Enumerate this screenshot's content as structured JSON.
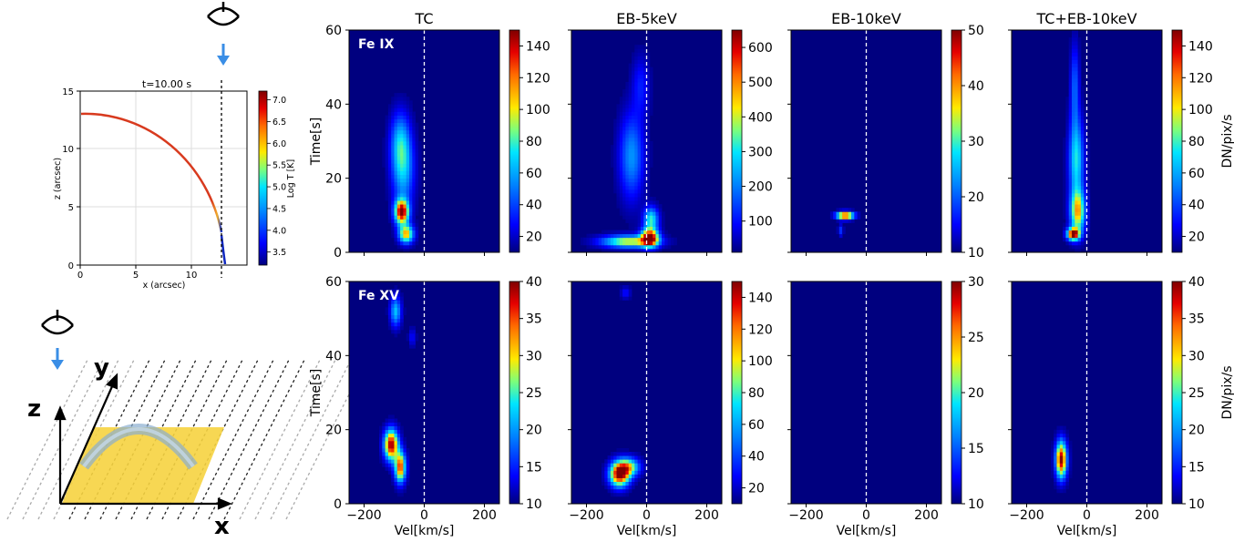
{
  "figure": {
    "colormap": [
      "#00007f",
      "#0000ff",
      "#0080ff",
      "#00e5ff",
      "#7dff7a",
      "#ffea00",
      "#ff6a00",
      "#e60000",
      "#7f0000"
    ],
    "column_titles": [
      "TC",
      "EB-5keV",
      "EB-10keV",
      "TC+EB-10keV"
    ],
    "row_labels": [
      "Fe IX",
      "Fe XV"
    ],
    "xlabel": "Vel[km/s]",
    "ylabel": "Time[s]",
    "cbar_label": "DN/pix/s"
  },
  "loop_plot": {
    "title": "t=10.00 s",
    "xlabel": "x (arcsec)",
    "ylabel": "z (arcsec)",
    "cbar_label": "Log T [K]",
    "xticks": [
      "0",
      "5",
      "10"
    ],
    "yticks": [
      "0",
      "5",
      "10",
      "15"
    ],
    "cbar_ticks": [
      "7.0",
      "6.5",
      "6.0",
      "5.5",
      "5.0",
      "4.5",
      "4.0",
      "3.5"
    ],
    "cbar_range": [
      3.2,
      7.2
    ],
    "xlim": [
      0,
      15
    ],
    "ylim": [
      0,
      15
    ],
    "observer_x": 12.9
  },
  "schematic": {
    "axis_x": "x",
    "axis_y": "y",
    "axis_z": "z"
  },
  "chart_data": [
    {
      "type": "heatmap",
      "title": "TC",
      "row_label": "Fe IX",
      "xlim": [
        -250,
        250
      ],
      "ylim": [
        0,
        60
      ],
      "xticks": [
        -200,
        0,
        200
      ],
      "yticks": [
        0,
        20,
        40,
        60
      ],
      "vmin": 10,
      "vmax": 150,
      "cbar_ticks": [
        20,
        40,
        60,
        80,
        100,
        120,
        140
      ],
      "blobs": [
        {
          "v": -80,
          "t": 30,
          "dv": 40,
          "dt": 10,
          "a": 55
        },
        {
          "v": -70,
          "t": 22,
          "dv": 45,
          "dt": 12,
          "a": 60
        },
        {
          "v": -75,
          "t": 11,
          "dv": 28,
          "dt": 4,
          "a": 150
        },
        {
          "v": -60,
          "t": 5,
          "dv": 30,
          "dt": 3,
          "a": 110
        }
      ]
    },
    {
      "type": "heatmap",
      "title": "EB-5keV",
      "xlim": [
        -250,
        250
      ],
      "ylim": [
        0,
        60
      ],
      "xticks": [
        -200,
        0,
        200
      ],
      "yticks": [
        0,
        20,
        40,
        60
      ],
      "vmin": 10,
      "vmax": 650,
      "cbar_ticks": [
        100,
        200,
        300,
        400,
        500,
        600
      ],
      "blobs": [
        {
          "v": -50,
          "t": 26,
          "dv": 50,
          "dt": 14,
          "a": 220
        },
        {
          "v": -20,
          "t": 45,
          "dv": 35,
          "dt": 10,
          "a": 110
        },
        {
          "v": -60,
          "t": 3,
          "dv": 110,
          "dt": 2,
          "a": 420
        },
        {
          "v": 10,
          "t": 4,
          "dv": 35,
          "dt": 3,
          "a": 650
        },
        {
          "v": 15,
          "t": 9,
          "dv": 30,
          "dt": 4,
          "a": 320
        }
      ]
    },
    {
      "type": "heatmap",
      "title": "EB-10keV",
      "xlim": [
        -250,
        250
      ],
      "ylim": [
        0,
        60
      ],
      "xticks": [
        -200,
        0,
        200
      ],
      "yticks": [
        0,
        20,
        40,
        60
      ],
      "vmin": 10,
      "vmax": 50,
      "cbar_ticks": [
        10,
        20,
        30,
        40,
        50
      ],
      "blobs": [
        {
          "v": -70,
          "t": 10,
          "dv": 35,
          "dt": 1.2,
          "a": 50
        },
        {
          "v": -85,
          "t": 6,
          "dv": 10,
          "dt": 2,
          "a": 18
        }
      ]
    },
    {
      "type": "heatmap",
      "title": "TC+EB-10keV",
      "xlim": [
        -250,
        250
      ],
      "ylim": [
        0,
        60
      ],
      "xticks": [
        -200,
        0,
        200
      ],
      "yticks": [
        0,
        20,
        40,
        60
      ],
      "vmin": 10,
      "vmax": 150,
      "cbar_ticks": [
        20,
        40,
        60,
        80,
        100,
        120,
        140
      ],
      "cbar_label": "DN/pix/s",
      "blobs": [
        {
          "v": -40,
          "t": 45,
          "dv": 18,
          "dt": 14,
          "a": 45
        },
        {
          "v": -35,
          "t": 25,
          "dv": 30,
          "dt": 14,
          "a": 75
        },
        {
          "v": -30,
          "t": 11,
          "dv": 30,
          "dt": 7,
          "a": 105
        },
        {
          "v": -45,
          "t": 5,
          "dv": 25,
          "dt": 2,
          "a": 150
        }
      ]
    },
    {
      "type": "heatmap",
      "title": "",
      "row_label": "Fe XV",
      "xlim": [
        -250,
        250
      ],
      "ylim": [
        0,
        60
      ],
      "xticks": [
        -200,
        0,
        200
      ],
      "yticks": [
        0,
        20,
        40,
        60
      ],
      "vmin": 10,
      "vmax": 40,
      "cbar_ticks": [
        10,
        15,
        20,
        25,
        30,
        35,
        40
      ],
      "blobs": [
        {
          "v": -110,
          "t": 16,
          "dv": 28,
          "dt": 5,
          "a": 40
        },
        {
          "v": -80,
          "t": 10,
          "dv": 22,
          "dt": 5,
          "a": 36
        },
        {
          "v": -95,
          "t": 52,
          "dv": 22,
          "dt": 5,
          "a": 22
        },
        {
          "v": -40,
          "t": 45,
          "dv": 15,
          "dt": 3,
          "a": 14
        }
      ]
    },
    {
      "type": "heatmap",
      "title": "",
      "xlim": [
        -250,
        250
      ],
      "ylim": [
        0,
        60
      ],
      "xticks": [
        -200,
        0,
        200
      ],
      "yticks": [
        0,
        20,
        40,
        60
      ],
      "vmin": 10,
      "vmax": 150,
      "cbar_ticks": [
        20,
        40,
        60,
        80,
        100,
        120,
        140
      ],
      "blobs": [
        {
          "v": -90,
          "t": 8,
          "dv": 40,
          "dt": 4,
          "a": 150
        },
        {
          "v": -60,
          "t": 10,
          "dv": 45,
          "dt": 3,
          "a": 90
        },
        {
          "v": -70,
          "t": 57,
          "dv": 20,
          "dt": 2,
          "a": 30
        }
      ]
    },
    {
      "type": "heatmap",
      "title": "",
      "xlim": [
        -250,
        250
      ],
      "ylim": [
        0,
        60
      ],
      "xticks": [
        -200,
        0,
        200
      ],
      "yticks": [
        0,
        20,
        40,
        60
      ],
      "vmin": 10,
      "vmax": 30,
      "cbar_ticks": [
        10,
        15,
        20,
        25,
        30
      ],
      "blobs": []
    },
    {
      "type": "heatmap",
      "title": "",
      "xlim": [
        -250,
        250
      ],
      "ylim": [
        0,
        60
      ],
      "xticks": [
        -200,
        0,
        200
      ],
      "yticks": [
        0,
        20,
        40,
        60
      ],
      "vmin": 10,
      "vmax": 40,
      "cbar_ticks": [
        10,
        15,
        20,
        25,
        30,
        35,
        40
      ],
      "cbar_label": "DN/pix/s",
      "blobs": [
        {
          "v": -85,
          "t": 12,
          "dv": 22,
          "dt": 6,
          "a": 40
        }
      ]
    }
  ]
}
